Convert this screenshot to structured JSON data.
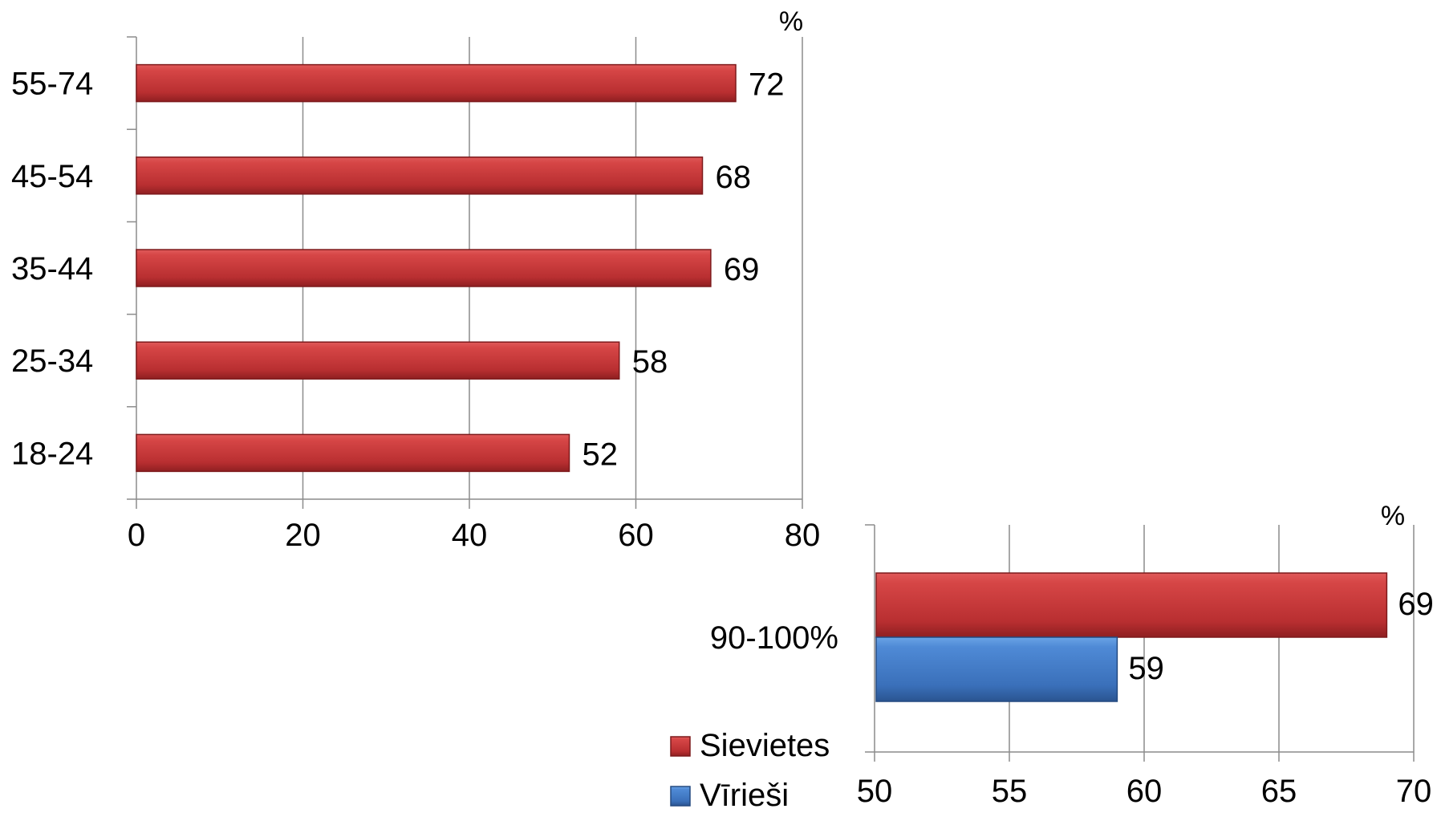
{
  "chart_data": [
    {
      "type": "bar",
      "orientation": "horizontal",
      "unit_label": "%",
      "categories": [
        "55-74",
        "45-54",
        "35-44",
        "25-34",
        "18-24"
      ],
      "series": [
        {
          "name": "Sievietes",
          "color": "#c0393b",
          "values": [
            72,
            68,
            69,
            58,
            52
          ]
        }
      ],
      "xlim": [
        0,
        80
      ],
      "x_ticks": [
        "0",
        "20",
        "40",
        "60",
        "80"
      ],
      "grid": true
    },
    {
      "type": "bar",
      "orientation": "horizontal",
      "unit_label": "%",
      "categories": [
        "90-100%"
      ],
      "series": [
        {
          "name": "Sievietes",
          "color": "#c0393b",
          "values": [
            69
          ]
        },
        {
          "name": "Vīrieši",
          "color": "#3d78c4",
          "values": [
            59
          ]
        }
      ],
      "xlim": [
        50,
        70
      ],
      "x_ticks": [
        "50",
        "55",
        "60",
        "65",
        "70"
      ],
      "grid": true,
      "legend": {
        "position": "bottom-left",
        "items": [
          {
            "label": "Sievietes",
            "color": "#c0393b"
          },
          {
            "label": "Vīrieši",
            "color": "#3d78c4"
          }
        ]
      }
    }
  ]
}
